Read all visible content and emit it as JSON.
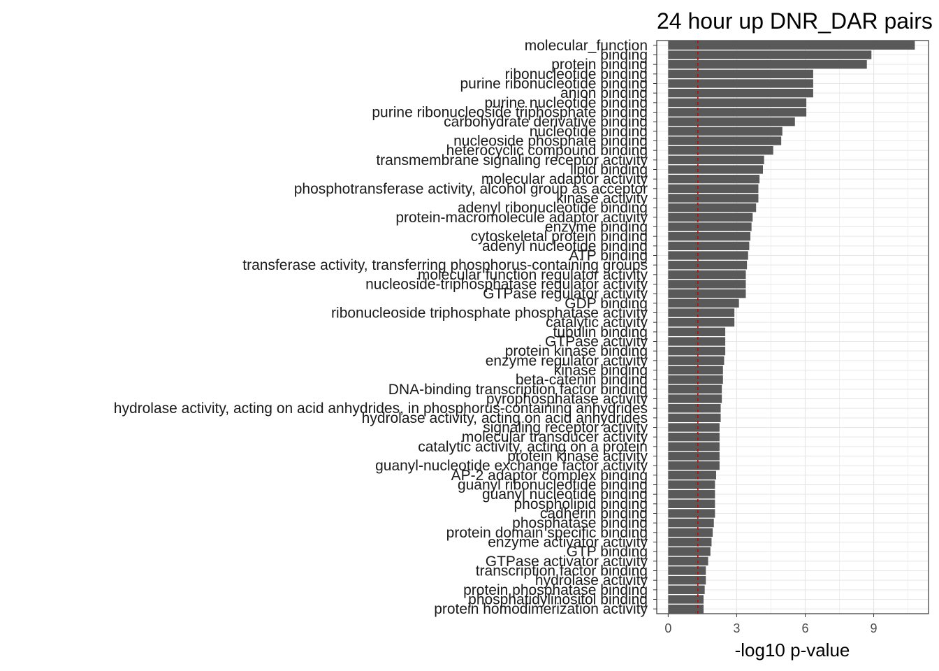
{
  "chart_data": {
    "type": "bar",
    "orientation": "horizontal",
    "title": "24 hour up DNR_DAR pairs",
    "xlabel": "-log10 p-value",
    "ylabel": "",
    "xlim": [
      -0.5,
      11.4
    ],
    "xticks": [
      0,
      3,
      6,
      9
    ],
    "grid": true,
    "legend": "none",
    "bar_color": "#595959",
    "reference_line": {
      "value": 1.3,
      "color": "#cc0000",
      "style": "dashed"
    },
    "categories": [
      "molecular_function",
      "binding",
      "protein binding",
      "ribonucleotide binding",
      "purine ribonucleotide binding",
      "anion binding",
      "purine nucleotide binding",
      "purine ribonucleoside triphosphate binding",
      "carbohydrate derivative binding",
      "nucleotide binding",
      "nucleoside phosphate binding",
      "heterocyclic compound binding",
      "transmembrane signaling receptor activity",
      "lipid binding",
      "molecular adaptor activity",
      "phosphotransferase activity, alcohol group as acceptor",
      "kinase activity",
      "adenyl ribonucleotide binding",
      "protein-macromolecule adaptor activity",
      "enzyme binding",
      "cytoskeletal protein binding",
      "adenyl nucleotide binding",
      "ATP binding",
      "transferase activity, transferring phosphorus-containing groups",
      "molecular function regulator activity",
      "nucleoside-triphosphatase regulator activity",
      "GTPase regulator activity",
      "GDP binding",
      "ribonucleoside triphosphate phosphatase activity",
      "catalytic activity",
      "tubulin binding",
      "GTPase activity",
      "protein kinase binding",
      "enzyme regulator activity",
      "kinase binding",
      "beta-catenin binding",
      "DNA-binding transcription factor binding",
      "pyrophosphatase activity",
      "hydrolase activity, acting on acid anhydrides, in phosphorus-containing anhydrides",
      "hydrolase activity, acting on acid anhydrides",
      "signaling receptor activity",
      "molecular transducer activity",
      "catalytic activity, acting on a protein",
      "protein kinase activity",
      "guanyl-nucleotide exchange factor activity",
      "AP-2 adaptor complex binding",
      "guanyl ribonucleotide binding",
      "guanyl nucleotide binding",
      "phospholipid binding",
      "cadherin binding",
      "phosphatase binding",
      "protein domain specific binding",
      "enzyme activator activity",
      "GTP binding",
      "GTPase activator activity",
      "transcription factor binding",
      "hydrolase activity",
      "protein phosphatase binding",
      "phosphatidylinositol binding",
      "protein homodimerization activity"
    ],
    "values": [
      10.8,
      8.9,
      8.7,
      6.35,
      6.35,
      6.35,
      6.05,
      6.05,
      5.55,
      5.0,
      4.95,
      4.6,
      4.2,
      4.15,
      4.0,
      3.95,
      3.95,
      3.85,
      3.7,
      3.65,
      3.6,
      3.55,
      3.5,
      3.45,
      3.4,
      3.4,
      3.4,
      3.1,
      2.9,
      2.9,
      2.5,
      2.5,
      2.5,
      2.45,
      2.4,
      2.4,
      2.35,
      2.35,
      2.3,
      2.3,
      2.25,
      2.25,
      2.25,
      2.25,
      2.25,
      2.1,
      2.05,
      2.05,
      2.05,
      2.05,
      2.0,
      1.95,
      1.9,
      1.85,
      1.75,
      1.65,
      1.65,
      1.6,
      1.55,
      1.55
    ]
  }
}
